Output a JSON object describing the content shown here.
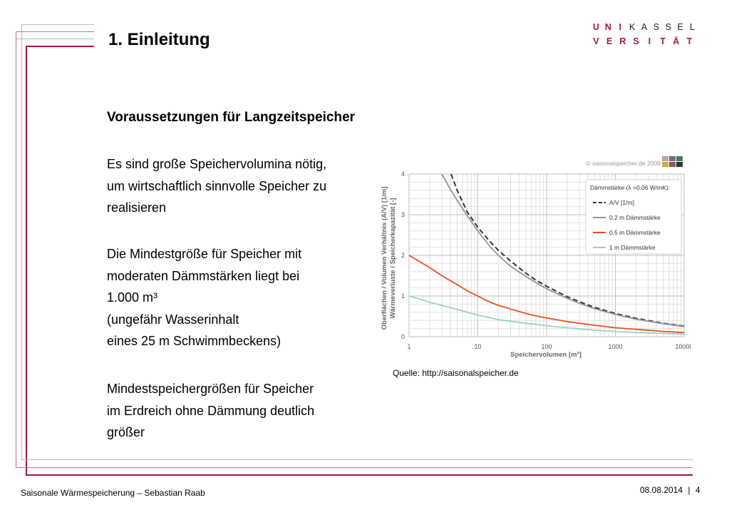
{
  "slide": {
    "title": "1. Einleitung",
    "subtitle": "Voraussetzungen für Langzeitspeicher",
    "para1": [
      "Es sind große Speichervolumina nötig,",
      "um wirtschaftlich sinnvolle Speicher zu",
      "realisieren"
    ],
    "para2": [
      "Die Mindestgröße für Speicher mit",
      "moderaten Dämmstärken liegt bei",
      "1.000 m³",
      "(ungefähr Wasserinhalt",
      "eines 25 m Schwimmbeckens)"
    ],
    "para3": [
      "Mindestspeichergrößen für Speicher",
      "im Erdreich ohne Dämmung deutlich",
      "größer"
    ],
    "source": "Quelle: http://saisonalspeicher.de",
    "accent_color": "#a3164e"
  },
  "logo": {
    "row1": [
      "U",
      "N",
      "I",
      "K",
      "A",
      "S",
      "S",
      "E",
      "L"
    ],
    "row2": [
      "V",
      "E",
      "R",
      "S",
      "I",
      "T",
      "Ä",
      "T"
    ]
  },
  "footer": {
    "left": "Saisonale Wärmespeicherung – Sebastian Raab",
    "date": "08.08.2014",
    "separator": "|",
    "page": "4"
  },
  "chart_data": {
    "type": "line",
    "copyright": "© saisonalspeicher.de 2009",
    "ylabel_line1": "Oberflächen / Volumen Verhältnis (A/V) [1/m]",
    "ylabel_line2": "Wärmeverluste / Speicherkapazität [-]",
    "xlabel": "Speichervolumen [m³]",
    "x_scale": "log",
    "xlim": [
      1,
      10000
    ],
    "ylim": [
      0,
      4
    ],
    "x_ticks": [
      "1",
      "10",
      "100",
      "1000",
      "10000"
    ],
    "y_ticks": [
      "0",
      "1",
      "2",
      "3",
      "4"
    ],
    "legend_title": "Dämmstärke (λ =0.06 W/mK):",
    "legend_position": "top-right",
    "grid": true,
    "series": [
      {
        "name": "A/V [1/m]",
        "color": "#333333",
        "dash": true,
        "x": [
          4.1,
          5,
          7,
          10,
          15,
          20,
          30,
          50,
          70,
          100,
          200,
          300,
          500,
          1000,
          2000,
          5000,
          10000
        ],
        "y": [
          4.0,
          3.6,
          3.07,
          2.69,
          2.34,
          2.12,
          1.86,
          1.56,
          1.39,
          1.24,
          0.98,
          0.86,
          0.72,
          0.57,
          0.45,
          0.33,
          0.26
        ]
      },
      {
        "name": "0.2 m Dämmstärke",
        "color": "#9a8fa0",
        "dash": false,
        "x": [
          3,
          4,
          5,
          7,
          10,
          15,
          20,
          30,
          50,
          70,
          100,
          200,
          300,
          500,
          1000,
          2000,
          5000,
          10000
        ],
        "y": [
          4.0,
          3.62,
          3.35,
          2.98,
          2.6,
          2.22,
          2.0,
          1.73,
          1.48,
          1.33,
          1.18,
          0.94,
          0.82,
          0.69,
          0.55,
          0.43,
          0.32,
          0.25
        ]
      },
      {
        "name": "0.5 m Dämmstärke",
        "color": "#e8501e",
        "dash": false,
        "x": [
          1,
          2,
          3,
          5,
          7,
          10,
          15,
          20,
          30,
          50,
          70,
          100,
          200,
          300,
          500,
          1000,
          2000,
          5000,
          10000
        ],
        "y": [
          2.0,
          1.7,
          1.5,
          1.28,
          1.13,
          1.0,
          0.85,
          0.77,
          0.68,
          0.57,
          0.51,
          0.46,
          0.37,
          0.33,
          0.28,
          0.22,
          0.18,
          0.13,
          0.1
        ]
      },
      {
        "name": "1 m Dämmstärke",
        "color": "#9fcfc7",
        "dash": false,
        "x": [
          1,
          2,
          3,
          5,
          10,
          20,
          30,
          50,
          100,
          200,
          300,
          500,
          1000,
          2000,
          5000,
          10000
        ],
        "y": [
          1.0,
          0.85,
          0.77,
          0.67,
          0.53,
          0.42,
          0.38,
          0.33,
          0.27,
          0.22,
          0.19,
          0.16,
          0.13,
          0.1,
          0.08,
          0.06
        ]
      }
    ]
  }
}
